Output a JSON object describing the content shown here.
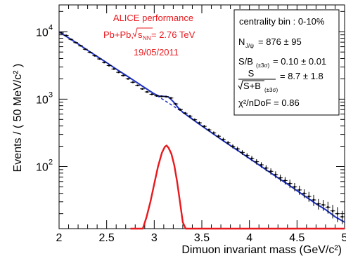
{
  "chart_data": {
    "type": "scatter",
    "xlabel": "Dimuon invariant mass (GeV/c²)",
    "ylabel": "Events / ( 50 MeV/c² )",
    "xlim": [
      2,
      5
    ],
    "ylim_log": [
      12,
      25000
    ],
    "log_y": true,
    "x_ticks": [
      "2",
      "2.5",
      "3",
      "3.5",
      "4",
      "4.5",
      "5"
    ],
    "y_ticks": [
      {
        "value": 10000,
        "base": "10",
        "exp": "4"
      },
      {
        "value": 1000,
        "base": "10",
        "exp": "3"
      },
      {
        "value": 100,
        "base": "10",
        "exp": "2"
      }
    ],
    "annotation": {
      "line1": "ALICE performance",
      "line2_prefix": "Pb+Pb,",
      "line2_s": "s",
      "line2_sub": "NN",
      "line2_suffix": " = 2.76 TeV",
      "line3": "19/05/2011",
      "color": "#e8191e"
    },
    "legend_box": {
      "centrality": "centrality bin : 0-10%",
      "n_label": "N",
      "n_sub": "J/ψ",
      "n_value": "=  876 ±  95",
      "sb_label": "S/B",
      "sb_sub": "(±3σ)",
      "sb_value": "= 0.10 ± 0.01",
      "signif_num": "S",
      "signif_den": "S+B",
      "signif_sub": "(±3σ)",
      "signif_value": "=   8.7 ± 1.8",
      "chi2": "χ²/nDoF = 0.86"
    },
    "colors": {
      "data": "#000000",
      "fit": "#1c2fc4",
      "signal": "#e8191e",
      "axis": "#000000"
    },
    "series": [
      {
        "type": "points_with_errors",
        "x": [
          2.025,
          2.075,
          2.125,
          2.175,
          2.225,
          2.275,
          2.325,
          2.375,
          2.425,
          2.475,
          2.525,
          2.575,
          2.625,
          2.675,
          2.725,
          2.775,
          2.825,
          2.875,
          2.925,
          2.975,
          3.025,
          3.075,
          3.125,
          3.175,
          3.225,
          3.275,
          3.325,
          3.375,
          3.425,
          3.475,
          3.525,
          3.575,
          3.625,
          3.675,
          3.725,
          3.775,
          3.825,
          3.875,
          3.925,
          3.975,
          4.025,
          4.075,
          4.125,
          4.175,
          4.225,
          4.275,
          4.325,
          4.375,
          4.425,
          4.475,
          4.525,
          4.575,
          4.625,
          4.675,
          4.725,
          4.775,
          4.825,
          4.875,
          4.925,
          4.975
        ],
        "y": [
          9600,
          8800,
          7700,
          6900,
          6200,
          5500,
          4950,
          4400,
          3950,
          3500,
          3150,
          2800,
          2500,
          2240,
          2000,
          1780,
          1600,
          1420,
          1280,
          1180,
          1120,
          1100,
          1090,
          1040,
          850,
          700,
          620,
          560,
          495,
          445,
          395,
          350,
          315,
          282,
          252,
          225,
          200,
          183,
          162,
          146,
          132,
          118,
          106,
          95,
          85,
          76,
          68,
          62,
          56,
          50,
          45,
          40,
          36,
          32,
          28,
          27,
          25,
          22,
          20,
          18
        ],
        "yerr": [
          100,
          95,
          90,
          85,
          80,
          75,
          70,
          66,
          62,
          58,
          55,
          52,
          50,
          48,
          45,
          42,
          40,
          38,
          36,
          34,
          33,
          33,
          33,
          32,
          30,
          27,
          25,
          24,
          22,
          21,
          20,
          19,
          18,
          17,
          16,
          15,
          14,
          14,
          13,
          12,
          12,
          11,
          10,
          10,
          9,
          9,
          8,
          8,
          8,
          7,
          7,
          6,
          6,
          6,
          5,
          5,
          5,
          5,
          5,
          4
        ]
      },
      {
        "name": "fit",
        "type": "line",
        "x": [
          2.0,
          2.1,
          2.2,
          2.3,
          2.4,
          2.5,
          2.6,
          2.7,
          2.8,
          2.9,
          3.0,
          3.05,
          3.1,
          3.15,
          3.2,
          3.25,
          3.3,
          3.4,
          3.5,
          3.6,
          3.7,
          3.8,
          3.9,
          4.0,
          4.1,
          4.2,
          4.3,
          4.4,
          4.5,
          4.6,
          4.7,
          4.8,
          4.9,
          5.0
        ],
        "y": [
          10000,
          8100,
          6600,
          5300,
          4300,
          3480,
          2800,
          2270,
          1830,
          1480,
          1200,
          1110,
          1100,
          1080,
          920,
          750,
          640,
          505,
          400,
          320,
          255,
          205,
          165,
          132,
          106,
          85,
          68,
          55,
          44,
          35,
          28,
          23,
          18,
          15
        ]
      },
      {
        "name": "background",
        "type": "dashed_line",
        "x": [
          2.9,
          3.0,
          3.1,
          3.2,
          3.3,
          3.4
        ],
        "y": [
          1480,
          1200,
          970,
          790,
          640,
          515
        ]
      },
      {
        "name": "signal",
        "type": "line",
        "x": [
          2.75,
          2.88,
          2.92,
          2.96,
          3.0,
          3.04,
          3.08,
          3.11,
          3.13,
          3.15,
          3.18,
          3.21,
          3.24,
          3.27,
          3.3,
          3.33,
          3.5,
          5.0
        ],
        "y": [
          12,
          12,
          18,
          30,
          55,
          100,
          160,
          195,
          205,
          190,
          155,
          105,
          60,
          30,
          15,
          12,
          12,
          12
        ]
      }
    ]
  }
}
